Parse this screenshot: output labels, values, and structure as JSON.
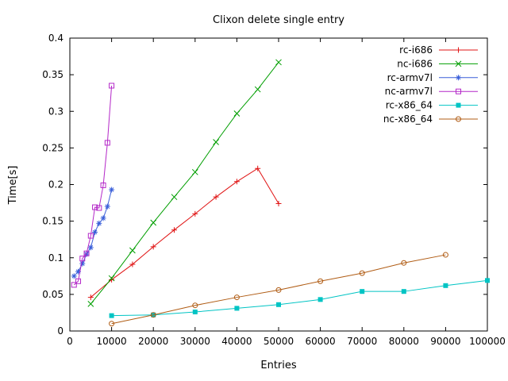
{
  "title": "Clixon delete single entry",
  "chart_data": {
    "type": "line",
    "title": "Clixon delete single entry",
    "xlabel": "Entries",
    "ylabel": "Time[s]",
    "xlim": [
      0,
      100000
    ],
    "ylim": [
      0,
      0.4
    ],
    "xticks": [
      0,
      10000,
      20000,
      30000,
      40000,
      50000,
      60000,
      70000,
      80000,
      90000,
      100000
    ],
    "yticks": [
      0,
      0.05,
      0.1,
      0.15,
      0.2,
      0.25,
      0.3,
      0.35,
      0.4
    ],
    "grid": false,
    "legend_position": "top-right-inside",
    "background": "#ffffff",
    "border_color": "#000000",
    "series": [
      {
        "name": "rc-i686",
        "color": "#e01414",
        "marker": "plus",
        "x": [
          5000,
          10000,
          15000,
          20000,
          25000,
          30000,
          35000,
          40000,
          45000,
          50000
        ],
        "y": [
          0.046,
          0.07,
          0.091,
          0.115,
          0.138,
          0.16,
          0.183,
          0.204,
          0.222,
          0.174
        ]
      },
      {
        "name": "nc-i686",
        "color": "#009e00",
        "marker": "cross",
        "x": [
          5000,
          10000,
          15000,
          20000,
          25000,
          30000,
          35000,
          40000,
          45000,
          50000
        ],
        "y": [
          0.037,
          0.072,
          0.11,
          0.148,
          0.183,
          0.217,
          0.258,
          0.297,
          0.33,
          0.367
        ]
      },
      {
        "name": "rc-armv7l",
        "color": "#3a5fd9",
        "marker": "asterisk",
        "x": [
          1000,
          2000,
          3000,
          4000,
          5000,
          6000,
          7000,
          8000,
          9000,
          10000
        ],
        "y": [
          0.075,
          0.081,
          0.092,
          0.105,
          0.114,
          0.135,
          0.147,
          0.154,
          0.17,
          0.193
        ]
      },
      {
        "name": "nc-armv7l",
        "color": "#b428c8",
        "marker": "square-open",
        "x": [
          1000,
          2000,
          3000,
          4000,
          5000,
          6000,
          7000,
          8000,
          9000,
          10000
        ],
        "y": [
          0.063,
          0.068,
          0.099,
          0.106,
          0.13,
          0.169,
          0.168,
          0.199,
          0.257,
          0.335
        ]
      },
      {
        "name": "rc-x86_64",
        "color": "#00c4c4",
        "marker": "square-filled",
        "x": [
          10000,
          20000,
          30000,
          40000,
          50000,
          60000,
          70000,
          80000,
          90000,
          100000
        ],
        "y": [
          0.021,
          0.022,
          0.026,
          0.031,
          0.036,
          0.043,
          0.054,
          0.054,
          0.062,
          0.069
        ]
      },
      {
        "name": "nc-x86_64",
        "color": "#b05c14",
        "marker": "circle-open",
        "x": [
          10000,
          20000,
          30000,
          40000,
          50000,
          60000,
          70000,
          80000,
          90000
        ],
        "y": [
          0.01,
          0.022,
          0.035,
          0.046,
          0.056,
          0.068,
          0.079,
          0.093,
          0.104
        ]
      }
    ]
  }
}
